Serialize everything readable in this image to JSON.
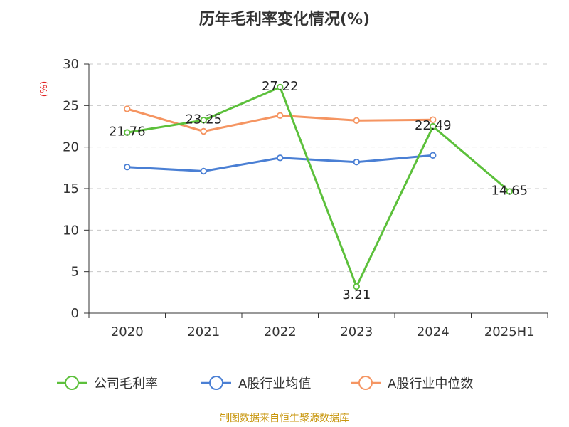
{
  "chart_data": {
    "type": "line",
    "title": "历年毛利率变化情况(%)",
    "ylabel": "(%)",
    "xlabel": "",
    "ylim": [
      0,
      30
    ],
    "yticks": [
      0,
      5,
      10,
      15,
      20,
      25,
      30
    ],
    "grid": "horizontal-dashed",
    "legend_position": "bottom",
    "categories": [
      "2020",
      "2021",
      "2022",
      "2023",
      "2024",
      "2025H1"
    ],
    "series": [
      {
        "name": "公司毛利率",
        "color": "#5cc03b",
        "values": [
          21.76,
          23.25,
          27.22,
          3.21,
          22.49,
          14.65
        ],
        "labels": [
          "21.76",
          "23.25",
          "27.22",
          "3.21",
          "22.49",
          "14.65"
        ]
      },
      {
        "name": "A股行业均值",
        "color": "#4a7fd4",
        "values": [
          17.6,
          17.1,
          18.7,
          18.2,
          19.0,
          null
        ]
      },
      {
        "name": "A股行业中位数",
        "color": "#f59562",
        "values": [
          24.6,
          21.9,
          23.8,
          23.2,
          23.3,
          null
        ]
      }
    ],
    "source": "制图数据来自恒生聚源数据库"
  }
}
